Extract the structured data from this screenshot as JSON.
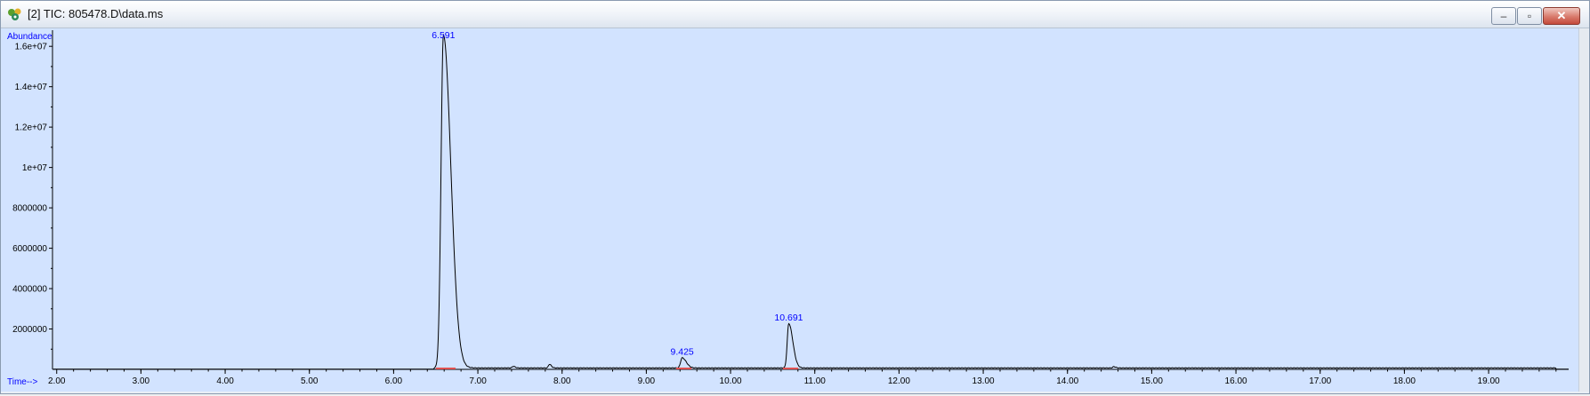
{
  "window": {
    "title": "[2] TIC: 805478.D\\data.ms",
    "icon": "chromatogram-app-icon",
    "buttons": {
      "minimize": "minimize-icon",
      "maximize": "maximize-icon",
      "close": "close-icon"
    }
  },
  "colors": {
    "plot_background": "#d2e3ff",
    "trace": "#000000",
    "axis_text": "#000000",
    "axis_title": "#0000ff",
    "peak_label": "#0000ff",
    "baseline_marker": "#e05050"
  },
  "chart_data": {
    "type": "line",
    "xlabel": "Time-->",
    "ylabel": "Abundance",
    "xlim": [
      1.95,
      19.95
    ],
    "ylim": [
      0,
      16800000
    ],
    "x_ticks": [
      "2.00",
      "3.00",
      "4.00",
      "5.00",
      "6.00",
      "7.00",
      "8.00",
      "9.00",
      "10.00",
      "11.00",
      "12.00",
      "13.00",
      "14.00",
      "15.00",
      "16.00",
      "17.00",
      "18.00",
      "19.00"
    ],
    "y_ticks": [
      {
        "value": 2000000,
        "label": "2000000"
      },
      {
        "value": 4000000,
        "label": "4000000"
      },
      {
        "value": 6000000,
        "label": "6000000"
      },
      {
        "value": 8000000,
        "label": "8000000"
      },
      {
        "value": 10000000,
        "label": "1e+07"
      },
      {
        "value": 12000000,
        "label": "1.2e+07"
      },
      {
        "value": 14000000,
        "label": "1.4e+07"
      },
      {
        "value": 16000000,
        "label": "1.6e+07"
      }
    ],
    "grid": false,
    "peaks": [
      {
        "rt": 6.591,
        "label": "6.591",
        "abundance": 16500000
      },
      {
        "rt": 9.425,
        "label": "9.425",
        "abundance": 500000
      },
      {
        "rt": 10.691,
        "label": "10.691",
        "abundance": 2200000
      }
    ],
    "minor_peaks": [
      {
        "rt": 7.85,
        "abundance": 180000
      },
      {
        "rt": 7.42,
        "abundance": 80000
      },
      {
        "rt": 14.55,
        "abundance": 60000
      }
    ],
    "baseline_abundance": 60000
  }
}
